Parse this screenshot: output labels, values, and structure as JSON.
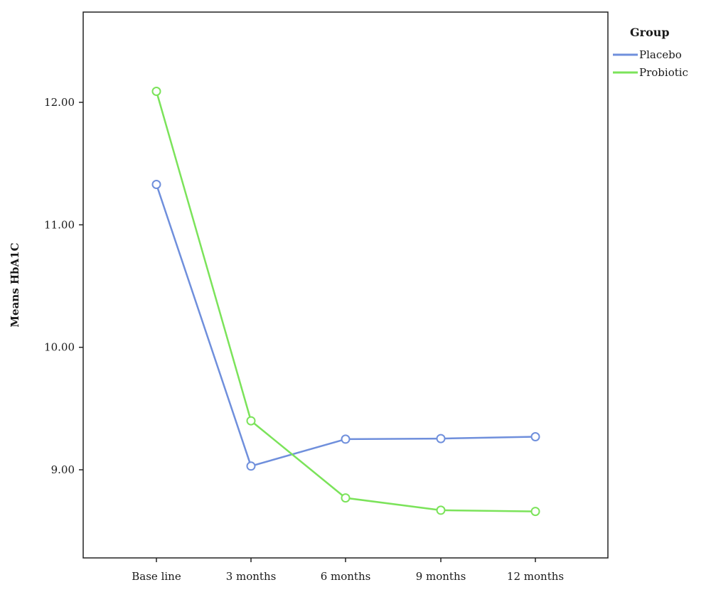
{
  "chart_data": {
    "type": "line",
    "categories": [
      "Base line",
      "3 months",
      "6 months",
      "9 months",
      "12 months"
    ],
    "ylabel": "Means HbA1C",
    "xlabel": "",
    "ylim": [
      8.3,
      12.75
    ],
    "yticks": [
      9.0,
      10.0,
      11.0,
      12.0
    ],
    "ytick_labels": [
      "9.00",
      "10.00",
      "11.00",
      "12.00"
    ],
    "grid": false,
    "legend": {
      "title": "Group",
      "position": "top-right-outside"
    },
    "series": [
      {
        "name": "Placebo",
        "color": "#6f8fdc",
        "values": [
          11.33,
          9.03,
          9.25,
          9.255,
          9.27
        ]
      },
      {
        "name": "Probiotic",
        "color": "#7be35a",
        "values": [
          12.09,
          9.4,
          8.77,
          8.67,
          8.66
        ]
      }
    ]
  }
}
